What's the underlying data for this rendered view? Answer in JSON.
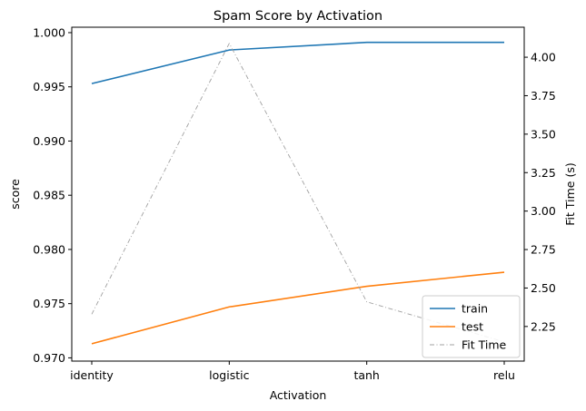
{
  "chart_data": {
    "type": "line",
    "title": "Spam Score by Activation",
    "xlabel": "Activation",
    "ylabel": "score",
    "y2label": "Fit Time (s)",
    "categories": [
      "identity",
      "logistic",
      "tanh",
      "relu"
    ],
    "ylim": [
      0.9697,
      1.0005
    ],
    "y2lim": [
      2.025,
      4.195
    ],
    "yticks": [
      "0.970",
      "0.975",
      "0.980",
      "0.985",
      "0.990",
      "0.995",
      "1.000"
    ],
    "y2ticks": [
      "2.25",
      "2.50",
      "2.75",
      "3.00",
      "3.25",
      "3.50",
      "3.75",
      "4.00"
    ],
    "grid": false,
    "legend_position": "lower-right",
    "series": [
      {
        "name": "train",
        "axis": "left",
        "color": "#1f77b4",
        "style": "solid",
        "values": [
          0.9953,
          0.9984,
          0.9991,
          0.9991
        ]
      },
      {
        "name": "test",
        "axis": "left",
        "color": "#ff7f0e",
        "style": "solid",
        "values": [
          0.9713,
          0.9747,
          0.9766,
          0.9779
        ]
      },
      {
        "name": "Fit Time",
        "axis": "right",
        "color": "#a0a0a0",
        "style": "dashdot",
        "values": [
          2.33,
          4.09,
          2.41,
          2.15
        ]
      }
    ]
  }
}
